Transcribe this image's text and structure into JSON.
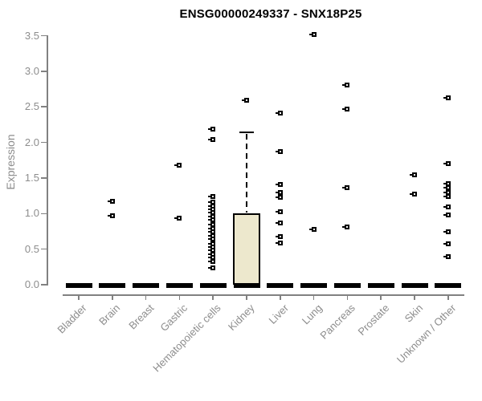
{
  "chart_data": {
    "type": "boxplot",
    "title": "ENSG00000249337 - SNX18P25",
    "ylabel": "Expression",
    "ylim": [
      0,
      3.5
    ],
    "yticks": [
      "0.0",
      "0.5",
      "1.0",
      "1.5",
      "2.0",
      "2.5",
      "3.0",
      "3.5"
    ],
    "grid": false,
    "legend": false,
    "categories": [
      "Bladder",
      "Brain",
      "Breast",
      "Gastric",
      "Hematopoietic cells",
      "Kidney",
      "Liver",
      "Lung",
      "Pancreas",
      "Prostate",
      "Skin",
      "Unknown / Other"
    ],
    "boxes": [
      {
        "category": "Bladder",
        "q1": 0,
        "median": 0,
        "q3": 0,
        "whisker_low": 0,
        "whisker_high": 0,
        "points": []
      },
      {
        "category": "Brain",
        "q1": 0,
        "median": 0,
        "q3": 0,
        "whisker_low": 0,
        "whisker_high": 0,
        "points": [
          1.17,
          0.97
        ]
      },
      {
        "category": "Breast",
        "q1": 0,
        "median": 0,
        "q3": 0,
        "whisker_low": 0,
        "whisker_high": 0,
        "points": []
      },
      {
        "category": "Gastric",
        "q1": 0,
        "median": 0,
        "q3": 0,
        "whisker_low": 0,
        "whisker_high": 0,
        "points": [
          1.68,
          0.94
        ]
      },
      {
        "category": "Hematopoietic cells",
        "q1": 0,
        "median": 0,
        "q3": 0,
        "whisker_low": 0,
        "whisker_high": 0,
        "points": [
          2.19,
          2.04,
          1.24,
          1.16,
          1.11,
          1.06,
          1.01,
          0.96,
          0.91,
          0.84,
          0.79,
          0.74,
          0.69,
          0.64,
          0.58,
          0.53,
          0.48,
          0.43,
          0.38,
          0.33,
          0.24
        ]
      },
      {
        "category": "Kidney",
        "q1": 0,
        "median": 0,
        "q3": 1.0,
        "whisker_low": 0,
        "whisker_high": 2.14,
        "points": [
          2.59
        ]
      },
      {
        "category": "Liver",
        "q1": 0,
        "median": 0,
        "q3": 0,
        "whisker_low": 0,
        "whisker_high": 0,
        "points": [
          2.41,
          1.87,
          1.41,
          1.3,
          1.23,
          1.03,
          0.87,
          0.68,
          0.59
        ]
      },
      {
        "category": "Lung",
        "q1": 0,
        "median": 0,
        "q3": 0,
        "whisker_low": 0,
        "whisker_high": 0,
        "points": [
          3.52,
          0.78
        ]
      },
      {
        "category": "Pancreas",
        "q1": 0,
        "median": 0,
        "q3": 0,
        "whisker_low": 0,
        "whisker_high": 0,
        "points": [
          2.81,
          2.47,
          1.36,
          0.81
        ]
      },
      {
        "category": "Prostate",
        "q1": 0,
        "median": 0,
        "q3": 0,
        "whisker_low": 0,
        "whisker_high": 0,
        "points": []
      },
      {
        "category": "Skin",
        "q1": 0,
        "median": 0,
        "q3": 0,
        "whisker_low": 0,
        "whisker_high": 0,
        "points": [
          1.54,
          1.27
        ]
      },
      {
        "category": "Unknown / Other",
        "q1": 0,
        "median": 0,
        "q3": 0,
        "whisker_low": 0,
        "whisker_high": 0,
        "points": [
          2.63,
          1.7,
          1.42,
          1.36,
          1.3,
          1.24,
          1.09,
          0.98,
          0.74,
          0.57,
          0.39
        ]
      }
    ],
    "colors": {
      "box_fill": "#EDE8CD",
      "box_border": "#000000",
      "median": "#000000",
      "point": "#000000",
      "axis": "#818181",
      "tick_label": "#8d8d8d",
      "title": "#000000",
      "background": "#ffffff"
    }
  }
}
